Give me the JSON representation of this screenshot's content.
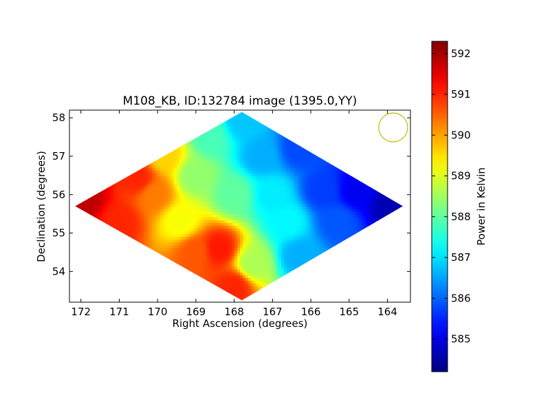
{
  "chart_data": {
    "type": "heatmap",
    "title": "M108_KB, ID:132784 image (1395.0,YY)",
    "xlabel": "Right Ascension (degrees)",
    "ylabel": "Declination (degrees)",
    "xlim": [
      172.3,
      163.4
    ],
    "ylim": [
      53.2,
      58.2
    ],
    "x_ticks": [
      172,
      171,
      170,
      169,
      168,
      167,
      166,
      165,
      164
    ],
    "y_ticks": [
      54,
      55,
      56,
      57,
      58
    ],
    "colorbar": {
      "label": "Power in Kelvin",
      "range": [
        584.2,
        592.3
      ],
      "ticks": [
        585,
        586,
        587,
        588,
        589,
        590,
        591,
        592
      ],
      "colormap": "jet"
    },
    "footprint_diamond_vertices": [
      {
        "ra": 167.8,
        "dec": 58.15
      },
      {
        "ra": 163.6,
        "dec": 55.7
      },
      {
        "ra": 167.8,
        "dec": 53.25
      },
      {
        "ra": 172.15,
        "dec": 55.7
      }
    ],
    "value_samples": [
      {
        "ra": 171.9,
        "dec": 55.9,
        "value": 591.8
      },
      {
        "ra": 171.0,
        "dec": 55.3,
        "value": 591.0
      },
      {
        "ra": 170.5,
        "dec": 56.4,
        "value": 591.0
      },
      {
        "ra": 169.8,
        "dec": 57.0,
        "value": 589.6
      },
      {
        "ra": 170.1,
        "dec": 56.0,
        "value": 590.3
      },
      {
        "ra": 169.4,
        "dec": 55.3,
        "value": 589.2
      },
      {
        "ra": 169.0,
        "dec": 54.5,
        "value": 590.6
      },
      {
        "ra": 168.4,
        "dec": 54.6,
        "value": 591.1
      },
      {
        "ra": 168.0,
        "dec": 53.6,
        "value": 591.0
      },
      {
        "ra": 167.5,
        "dec": 54.2,
        "value": 588.6
      },
      {
        "ra": 169.0,
        "dec": 56.5,
        "value": 588.4
      },
      {
        "ra": 168.6,
        "dec": 57.5,
        "value": 587.8
      },
      {
        "ra": 168.0,
        "dec": 56.0,
        "value": 588.0
      },
      {
        "ra": 167.8,
        "dec": 57.9,
        "value": 586.8
      },
      {
        "ra": 167.3,
        "dec": 57.0,
        "value": 586.6
      },
      {
        "ra": 167.0,
        "dec": 56.0,
        "value": 587.1
      },
      {
        "ra": 166.6,
        "dec": 55.3,
        "value": 587.2
      },
      {
        "ra": 166.3,
        "dec": 54.4,
        "value": 586.6
      },
      {
        "ra": 166.3,
        "dec": 57.2,
        "value": 585.8
      },
      {
        "ra": 165.7,
        "dec": 56.1,
        "value": 585.7
      },
      {
        "ra": 165.3,
        "dec": 55.3,
        "value": 585.9
      },
      {
        "ra": 164.8,
        "dec": 56.1,
        "value": 585.1
      },
      {
        "ra": 163.9,
        "dec": 55.7,
        "value": 584.6
      }
    ],
    "beam_marker": {
      "ra": 163.85,
      "dec": 57.75,
      "color": "#bdbd00"
    }
  }
}
